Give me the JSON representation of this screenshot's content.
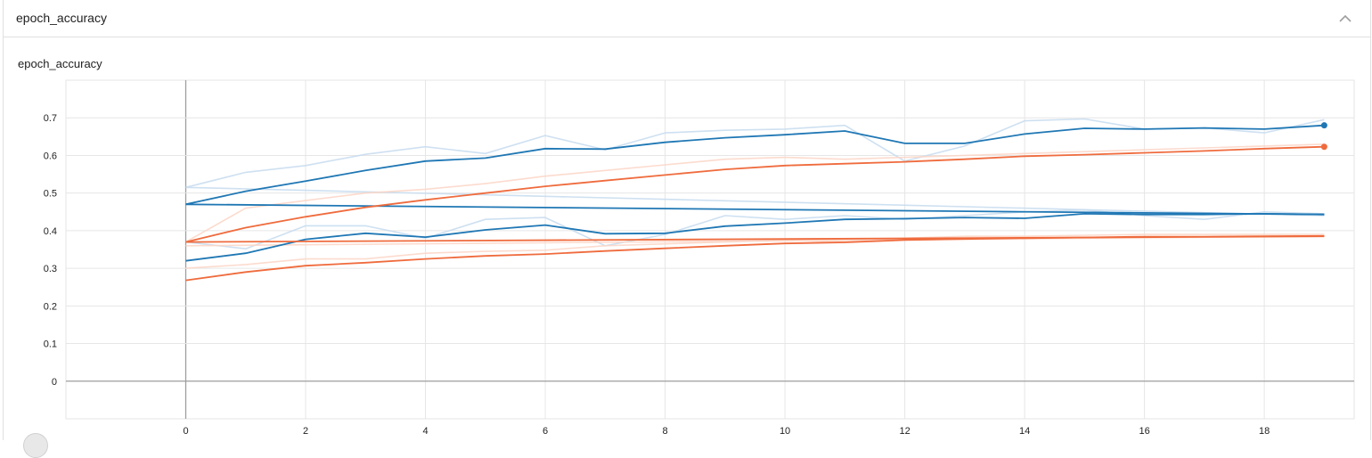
{
  "card": {
    "title": "epoch_accuracy",
    "collapse_icon": "chevron-up-icon"
  },
  "chart_data": {
    "type": "line",
    "title": "epoch_accuracy",
    "xlabel": "",
    "ylabel": "",
    "xlim": [
      -2,
      19.5
    ],
    "ylim": [
      -0.1,
      0.8
    ],
    "x_ticks": [
      0,
      2,
      4,
      6,
      8,
      10,
      12,
      14,
      16,
      18
    ],
    "y_ticks": [
      0,
      0.1,
      0.2,
      0.3,
      0.4,
      0.5,
      0.6,
      0.7
    ],
    "grid": true,
    "legend": "none",
    "colors": {
      "blue": "#1f77b4",
      "orange": "#ef6b3d",
      "light_blue": "#c6dbef",
      "light_orange": "#fcd5c5"
    },
    "series": [
      {
        "color": "blue",
        "kind": "smoothed",
        "x": [
          0,
          1,
          2,
          3,
          4,
          5,
          6,
          7,
          8,
          9,
          10,
          11,
          12,
          13,
          14,
          15,
          16,
          17,
          18,
          19
        ],
        "values": [
          0.47,
          0.505,
          0.532,
          0.56,
          0.585,
          0.593,
          0.618,
          0.617,
          0.635,
          0.647,
          0.655,
          0.665,
          0.632,
          0.632,
          0.657,
          0.672,
          0.67,
          0.673,
          0.67,
          0.68
        ],
        "end_marker": true
      },
      {
        "color": "blue",
        "kind": "raw",
        "x": [
          0,
          1,
          2,
          3,
          4,
          5,
          6,
          7,
          8,
          9,
          10,
          11,
          12,
          13,
          14,
          15,
          16,
          17,
          18,
          19
        ],
        "values": [
          0.515,
          0.555,
          0.573,
          0.603,
          0.623,
          0.605,
          0.653,
          0.615,
          0.66,
          0.667,
          0.67,
          0.68,
          0.585,
          0.625,
          0.692,
          0.697,
          0.67,
          0.673,
          0.66,
          0.695
        ]
      },
      {
        "color": "blue",
        "kind": "smoothed",
        "x": [
          0,
          19
        ],
        "values": [
          0.47,
          0.443
        ]
      },
      {
        "color": "blue",
        "kind": "raw",
        "x": [
          0,
          19
        ],
        "values": [
          0.515,
          0.44
        ]
      },
      {
        "color": "blue",
        "kind": "smoothed",
        "x": [
          0,
          1,
          2,
          3,
          4,
          5,
          6,
          7,
          8,
          9,
          10,
          11,
          12,
          13,
          14,
          15,
          16,
          17,
          18,
          19
        ],
        "values": [
          0.32,
          0.34,
          0.377,
          0.393,
          0.383,
          0.402,
          0.415,
          0.392,
          0.393,
          0.412,
          0.42,
          0.43,
          0.432,
          0.435,
          0.433,
          0.445,
          0.443,
          0.443,
          0.445,
          0.443
        ]
      },
      {
        "color": "blue",
        "kind": "raw",
        "x": [
          0,
          1,
          2,
          3,
          4,
          5,
          6,
          7,
          8,
          9,
          10,
          11,
          12,
          13,
          14,
          15,
          16,
          17,
          18,
          19
        ],
        "values": [
          0.37,
          0.352,
          0.413,
          0.413,
          0.38,
          0.43,
          0.435,
          0.36,
          0.39,
          0.44,
          0.43,
          0.44,
          0.43,
          0.44,
          0.45,
          0.455,
          0.44,
          0.43,
          0.45,
          0.445
        ]
      },
      {
        "color": "orange",
        "kind": "smoothed",
        "x": [
          0,
          1,
          2,
          3,
          4,
          5,
          6,
          7,
          8,
          9,
          10,
          11,
          12,
          13,
          14,
          15,
          16,
          17,
          18,
          19
        ],
        "values": [
          0.37,
          0.408,
          0.437,
          0.462,
          0.482,
          0.5,
          0.518,
          0.533,
          0.548,
          0.563,
          0.573,
          0.578,
          0.583,
          0.59,
          0.598,
          0.602,
          0.607,
          0.612,
          0.618,
          0.623
        ],
        "end_marker": true
      },
      {
        "color": "orange",
        "kind": "raw",
        "x": [
          0,
          1,
          2,
          3,
          4,
          5,
          6,
          7,
          8,
          9,
          10,
          11,
          12,
          13,
          14,
          15,
          16,
          17,
          18,
          19
        ],
        "values": [
          0.37,
          0.46,
          0.48,
          0.5,
          0.51,
          0.525,
          0.545,
          0.56,
          0.575,
          0.59,
          0.595,
          0.59,
          0.595,
          0.6,
          0.605,
          0.61,
          0.615,
          0.62,
          0.625,
          0.63
        ]
      },
      {
        "color": "orange",
        "kind": "smoothed",
        "x": [
          0,
          19
        ],
        "values": [
          0.37,
          0.385
        ]
      },
      {
        "color": "orange",
        "kind": "raw",
        "x": [
          0,
          19
        ],
        "values": [
          0.36,
          0.385
        ]
      },
      {
        "color": "orange",
        "kind": "smoothed",
        "x": [
          0,
          1,
          2,
          3,
          4,
          5,
          6,
          7,
          8,
          9,
          10,
          11,
          12,
          13,
          14,
          15,
          16,
          17,
          18,
          19
        ],
        "values": [
          0.268,
          0.29,
          0.307,
          0.315,
          0.325,
          0.333,
          0.338,
          0.346,
          0.353,
          0.36,
          0.366,
          0.369,
          0.375,
          0.378,
          0.38,
          0.382,
          0.384,
          0.384,
          0.385,
          0.386
        ]
      },
      {
        "color": "orange",
        "kind": "raw",
        "x": [
          0,
          1,
          2,
          3,
          4,
          5,
          6,
          7,
          8,
          9,
          10,
          11,
          12,
          13,
          14,
          15,
          16,
          17,
          18,
          19
        ],
        "values": [
          0.3,
          0.31,
          0.325,
          0.325,
          0.34,
          0.345,
          0.348,
          0.36,
          0.365,
          0.37,
          0.375,
          0.37,
          0.38,
          0.385,
          0.385,
          0.388,
          0.39,
          0.39,
          0.39,
          0.39
        ]
      }
    ]
  }
}
